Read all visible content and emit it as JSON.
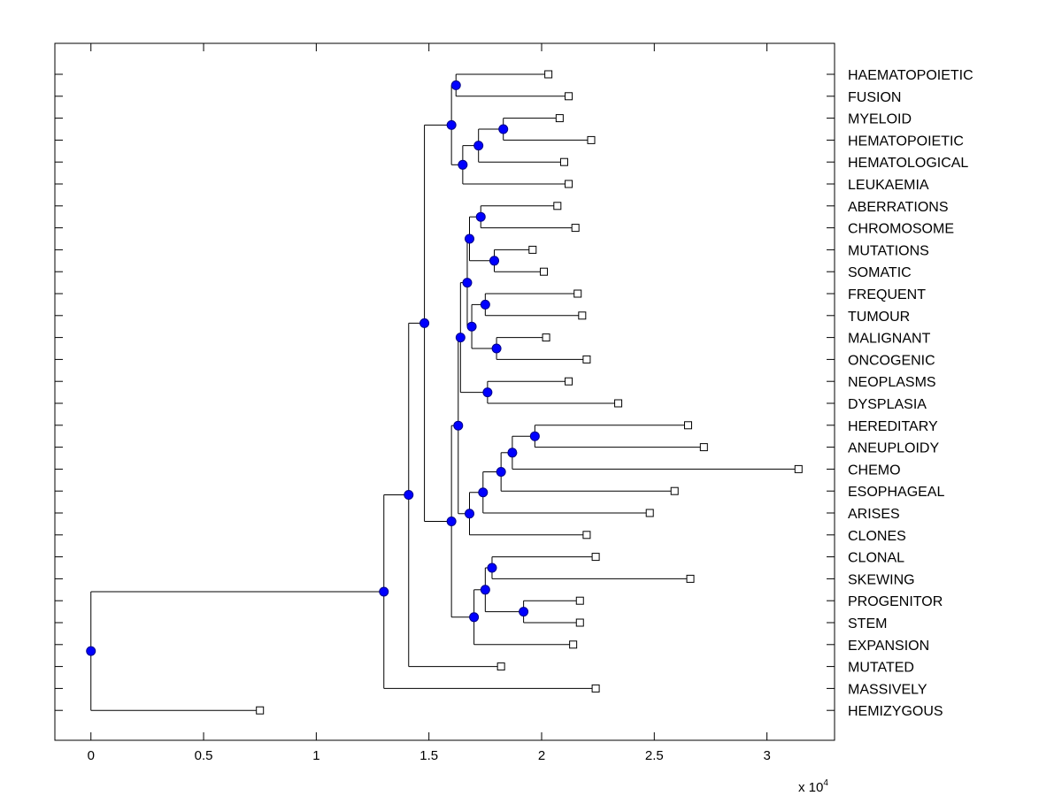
{
  "chart_data": {
    "type": "dendrogram",
    "title": "",
    "xlabel": "",
    "ylabel": "",
    "x_multiplier_text": "x 10",
    "x_multiplier_exponent": "4",
    "xlim": [
      -0.16,
      3.3
    ],
    "xticks": [
      {
        "value": 0,
        "label": "0"
      },
      {
        "value": 0.5,
        "label": "0.5"
      },
      {
        "value": 1,
        "label": "1"
      },
      {
        "value": 1.5,
        "label": "1.5"
      },
      {
        "value": 2,
        "label": "2"
      },
      {
        "value": 2.5,
        "label": "2.5"
      },
      {
        "value": 3,
        "label": "3"
      }
    ],
    "leaves": [
      {
        "id": "L1",
        "label": "HAEMATOPOIETIC",
        "x": 2.03
      },
      {
        "id": "L2",
        "label": "FUSION",
        "x": 2.12
      },
      {
        "id": "L3",
        "label": "MYELOID",
        "x": 2.08
      },
      {
        "id": "L4",
        "label": "HEMATOPOIETIC",
        "x": 2.22
      },
      {
        "id": "L5",
        "label": "HEMATOLOGICAL",
        "x": 2.1
      },
      {
        "id": "L6",
        "label": "LEUKAEMIA",
        "x": 2.12
      },
      {
        "id": "L7",
        "label": "ABERRATIONS",
        "x": 2.07
      },
      {
        "id": "L8",
        "label": "CHROMOSOME",
        "x": 2.15
      },
      {
        "id": "L9",
        "label": "MUTATIONS",
        "x": 1.96
      },
      {
        "id": "L10",
        "label": "SOMATIC",
        "x": 2.01
      },
      {
        "id": "L11",
        "label": "FREQUENT",
        "x": 2.16
      },
      {
        "id": "L12",
        "label": "TUMOUR",
        "x": 2.18
      },
      {
        "id": "L13",
        "label": "MALIGNANT",
        "x": 2.02
      },
      {
        "id": "L14",
        "label": "ONCOGENIC",
        "x": 2.2
      },
      {
        "id": "L15",
        "label": "NEOPLASMS",
        "x": 2.12
      },
      {
        "id": "L16",
        "label": "DYSPLASIA",
        "x": 2.34
      },
      {
        "id": "L17",
        "label": "HEREDITARY",
        "x": 2.65
      },
      {
        "id": "L18",
        "label": "ANEUPLOIDY",
        "x": 2.72
      },
      {
        "id": "L19",
        "label": "CHEMO",
        "x": 3.14
      },
      {
        "id": "L20",
        "label": "ESOPHAGEAL",
        "x": 2.59
      },
      {
        "id": "L21",
        "label": "ARISES",
        "x": 2.48
      },
      {
        "id": "L22",
        "label": "CLONES",
        "x": 2.2
      },
      {
        "id": "L23",
        "label": "CLONAL",
        "x": 2.24
      },
      {
        "id": "L24",
        "label": "SKEWING",
        "x": 2.66
      },
      {
        "id": "L25",
        "label": "PROGENITOR",
        "x": 2.17
      },
      {
        "id": "L26",
        "label": "STEM",
        "x": 2.17
      },
      {
        "id": "L27",
        "label": "EXPANSION",
        "x": 2.14
      },
      {
        "id": "L28",
        "label": "MUTATED",
        "x": 1.82
      },
      {
        "id": "L29",
        "label": "MASSIVELY",
        "x": 2.24
      },
      {
        "id": "L30",
        "label": "HEMIZYGOUS",
        "x": 0.75
      }
    ],
    "nodes": [
      {
        "id": "N1",
        "x": 1.62,
        "children": [
          "L1",
          "L2"
        ]
      },
      {
        "id": "N2",
        "x": 1.83,
        "children": [
          "L3",
          "L4"
        ]
      },
      {
        "id": "N3",
        "x": 1.72,
        "children": [
          "N2",
          "L5"
        ]
      },
      {
        "id": "N4",
        "x": 1.65,
        "children": [
          "N3",
          "L6"
        ]
      },
      {
        "id": "N5",
        "x": 1.6,
        "children": [
          "N1",
          "N4"
        ]
      },
      {
        "id": "N6",
        "x": 1.73,
        "children": [
          "L7",
          "L8"
        ]
      },
      {
        "id": "N7",
        "x": 1.79,
        "children": [
          "L9",
          "L10"
        ]
      },
      {
        "id": "N8",
        "x": 1.68,
        "children": [
          "N6",
          "N7"
        ]
      },
      {
        "id": "N9",
        "x": 1.75,
        "children": [
          "L11",
          "L12"
        ]
      },
      {
        "id": "N10",
        "x": 1.8,
        "children": [
          "L13",
          "L14"
        ]
      },
      {
        "id": "N11",
        "x": 1.69,
        "children": [
          "N9",
          "N10"
        ]
      },
      {
        "id": "N12",
        "x": 1.67,
        "children": [
          "N8",
          "N11"
        ]
      },
      {
        "id": "N13",
        "x": 1.76,
        "children": [
          "L15",
          "L16"
        ]
      },
      {
        "id": "N14",
        "x": 1.64,
        "children": [
          "N12",
          "N13"
        ]
      },
      {
        "id": "N15",
        "x": 1.97,
        "children": [
          "L17",
          "L18"
        ]
      },
      {
        "id": "N16",
        "x": 1.87,
        "children": [
          "N15",
          "L19"
        ]
      },
      {
        "id": "N17",
        "x": 1.82,
        "children": [
          "N16",
          "L20"
        ]
      },
      {
        "id": "N18",
        "x": 1.74,
        "children": [
          "N17",
          "L21"
        ]
      },
      {
        "id": "N19",
        "x": 1.68,
        "children": [
          "N18",
          "L22"
        ]
      },
      {
        "id": "N20",
        "x": 1.63,
        "children": [
          "N14",
          "N19"
        ]
      },
      {
        "id": "N21",
        "x": 1.78,
        "children": [
          "L23",
          "L24"
        ]
      },
      {
        "id": "N22",
        "x": 1.92,
        "children": [
          "L25",
          "L26"
        ]
      },
      {
        "id": "N23",
        "x": 1.75,
        "children": [
          "N21",
          "N22"
        ]
      },
      {
        "id": "N24",
        "x": 1.7,
        "children": [
          "N23",
          "L27"
        ]
      },
      {
        "id": "N25",
        "x": 1.6,
        "children": [
          "N20",
          "N24"
        ]
      },
      {
        "id": "N26",
        "x": 1.48,
        "children": [
          "N5",
          "N25"
        ]
      },
      {
        "id": "N27",
        "x": 1.41,
        "children": [
          "N26",
          "L28"
        ]
      },
      {
        "id": "N28",
        "x": 1.3,
        "children": [
          "N27",
          "L29"
        ]
      },
      {
        "id": "N29",
        "x": 0.0,
        "children": [
          "N28",
          "L30"
        ]
      }
    ],
    "colors": {
      "node_fill": "#0000ff",
      "node_stroke": "#00008b",
      "line": "#000000",
      "leaf_fill": "#ffffff"
    }
  }
}
